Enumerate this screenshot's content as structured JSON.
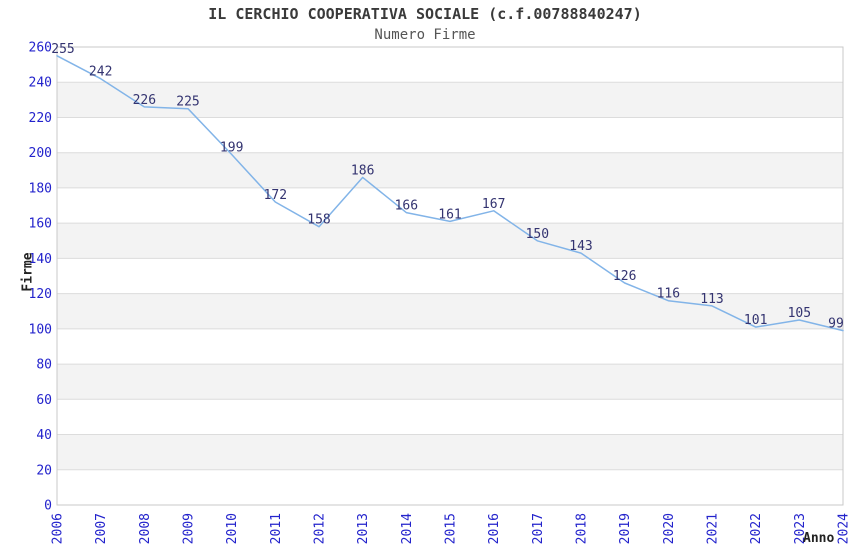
{
  "header": {
    "title": "IL CERCHIO COOPERATIVA SOCIALE (c.f.00788840247)",
    "subtitle": "Numero Firme"
  },
  "chart_data": {
    "type": "line",
    "title": "IL CERCHIO COOPERATIVA SOCIALE (c.f.00788840247)",
    "subtitle": "Numero Firme",
    "xlabel": "Anno",
    "ylabel": "Firme",
    "categories": [
      "2006",
      "2007",
      "2008",
      "2009",
      "2010",
      "2011",
      "2012",
      "2013",
      "2014",
      "2015",
      "2016",
      "2017",
      "2018",
      "2019",
      "2020",
      "2021",
      "2022",
      "2023",
      "2024"
    ],
    "values": [
      255,
      242,
      226,
      225,
      199,
      172,
      158,
      186,
      166,
      161,
      167,
      150,
      143,
      126,
      116,
      113,
      101,
      105,
      99
    ],
    "ylim": [
      0,
      260
    ],
    "ytick_step": 20,
    "grid": true,
    "legend": "none",
    "band_pattern": "alternating-horizontal",
    "colors": {
      "line": "#82b4e8",
      "data_label": "#333370",
      "tick_label": "#2323cc",
      "band": "#f3f3f3",
      "gridline": "#dcdcdc",
      "border": "#c9c9c9",
      "title": "#3a3a3a",
      "subtitle": "#555555",
      "axis_name": "#222222",
      "background": "#ffffff"
    }
  }
}
